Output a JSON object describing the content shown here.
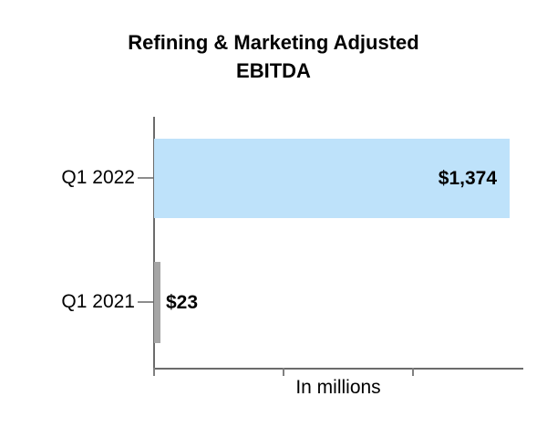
{
  "chart_data": {
    "type": "bar",
    "orientation": "horizontal",
    "title": "Refining & Marketing Adjusted EBITDA",
    "title_lines": [
      "Refining & Marketing Adjusted",
      "EBITDA"
    ],
    "categories": [
      "Q1 2022",
      "Q1 2021"
    ],
    "values": [
      1374,
      23
    ],
    "value_labels": [
      "$1,374",
      "$23"
    ],
    "xlabel": "In millions",
    "xlim": [
      0,
      1430
    ],
    "xticks": [
      0,
      500,
      1000
    ],
    "xtick_labels_visible": false,
    "grid": "off",
    "legend": "none",
    "bar_colors": [
      "#BEE2FA",
      "#A6A6A6"
    ],
    "axis_color": "#6B6B6B"
  }
}
